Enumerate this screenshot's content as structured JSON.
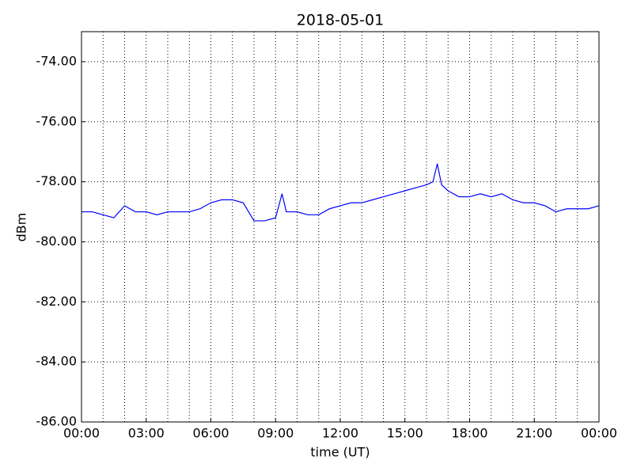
{
  "chart_data": {
    "type": "line",
    "title": "2018-05-01",
    "xlabel": "time (UT)",
    "ylabel": "dBm",
    "x": [
      0,
      0.5,
      1,
      1.5,
      2,
      2.5,
      3,
      3.5,
      4,
      4.5,
      5,
      5.5,
      6,
      6.5,
      7,
      7.5,
      8,
      8.5,
      9,
      9.3,
      9.5,
      10,
      10.5,
      11,
      11.5,
      12,
      12.5,
      13,
      13.5,
      14,
      14.5,
      15,
      15.5,
      16,
      16.3,
      16.5,
      16.7,
      17,
      17.5,
      18,
      18.5,
      19,
      19.5,
      20,
      20.5,
      21,
      21.5,
      22,
      22.5,
      23,
      23.5,
      24
    ],
    "series": [
      {
        "name": "dBm",
        "color": "#0000ff",
        "values": [
          -79.0,
          -79.0,
          -79.1,
          -79.2,
          -78.8,
          -79.0,
          -79.0,
          -79.1,
          -79.0,
          -79.0,
          -79.0,
          -78.9,
          -78.7,
          -78.6,
          -78.6,
          -78.7,
          -79.3,
          -79.3,
          -79.2,
          -78.4,
          -79.0,
          -79.0,
          -79.1,
          -79.1,
          -78.9,
          -78.8,
          -78.7,
          -78.7,
          -78.6,
          -78.5,
          -78.4,
          -78.3,
          -78.2,
          -78.1,
          -78.0,
          -77.4,
          -78.1,
          -78.3,
          -78.5,
          -78.5,
          -78.4,
          -78.5,
          -78.4,
          -78.6,
          -78.7,
          -78.7,
          -78.8,
          -79.0,
          -78.9,
          -78.9,
          -78.9,
          -78.8
        ]
      }
    ],
    "xlim": [
      0,
      24
    ],
    "xticks": [
      {
        "value": 0,
        "label": "00:00"
      },
      {
        "value": 3,
        "label": "03:00"
      },
      {
        "value": 6,
        "label": "06:00"
      },
      {
        "value": 9,
        "label": "09:00"
      },
      {
        "value": 12,
        "label": "12:00"
      },
      {
        "value": 15,
        "label": "15:00"
      },
      {
        "value": 18,
        "label": "18:00"
      },
      {
        "value": 21,
        "label": "21:00"
      },
      {
        "value": 24,
        "label": "00:00"
      }
    ],
    "xgrid": [
      1,
      2,
      4,
      5,
      7,
      8,
      10,
      11,
      13,
      14,
      16,
      17,
      19,
      20,
      22,
      23
    ],
    "ylim": [
      -86,
      -73
    ],
    "yticks": [
      {
        "value": -86,
        "label": "-86.00"
      },
      {
        "value": -84,
        "label": "-84.00"
      },
      {
        "value": -82,
        "label": "-82.00"
      },
      {
        "value": -80,
        "label": "-80.00"
      },
      {
        "value": -78,
        "label": "-78.00"
      },
      {
        "value": -76,
        "label": "-76.00"
      },
      {
        "value": -74,
        "label": "-74.00"
      }
    ],
    "grid": true
  }
}
